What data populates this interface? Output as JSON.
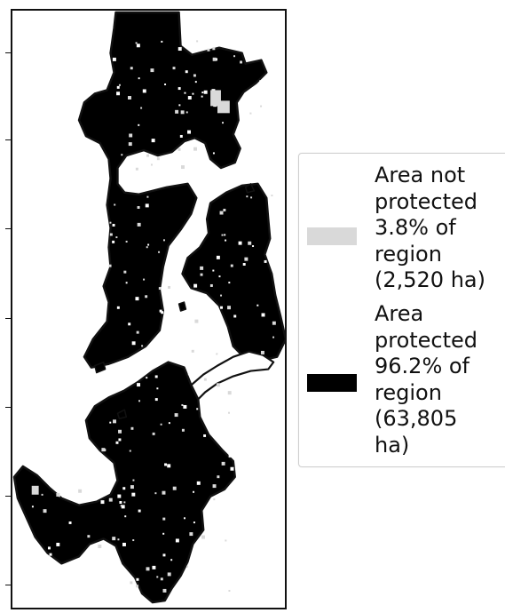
{
  "map": {
    "colors": {
      "protected": "#000000",
      "not_protected": "#d9d9d9",
      "outline": "#111111",
      "background": "#ffffff"
    }
  },
  "legend": {
    "position": "right",
    "items": [
      {
        "color": "#d9d9d9",
        "lines": [
          "Area not",
          "protected",
          "3.8% of",
          "region",
          "(2,520 ha)"
        ]
      },
      {
        "color": "#000000",
        "lines": [
          "Area",
          "protected",
          "96.2% of",
          "region",
          "(63,805",
          "ha)"
        ]
      }
    ]
  }
}
